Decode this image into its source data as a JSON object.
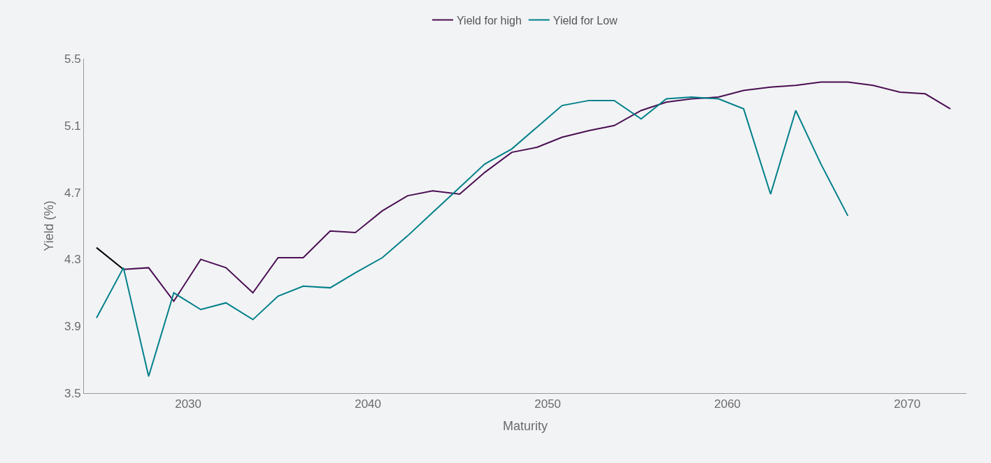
{
  "chart_data": {
    "type": "line",
    "xlabel": "Maturity",
    "ylabel": "Yield (%)",
    "xlim": [
      2024.2,
      2073.3
    ],
    "xticks": [
      2030,
      2040,
      2050,
      2060,
      2070
    ],
    "ylim": [
      3.5,
      5.5
    ],
    "yticks": [
      3.5,
      3.9,
      4.3,
      4.7,
      5.1,
      5.5
    ],
    "grid": false,
    "legend": "top",
    "marker": "none",
    "line_style": "solid",
    "series": [
      {
        "color": "#000000",
        "x": [
          2024.9,
          2026.4
        ],
        "values": [
          4.37,
          4.24
        ]
      },
      {
        "name": "Yield for high",
        "color": "#4a0f52",
        "x": [
          2026.4,
          2027.8,
          2029.2,
          2030.7,
          2032.1,
          2033.6,
          2035.0,
          2036.4,
          2037.9,
          2039.3,
          2040.8,
          2042.2,
          2043.6,
          2045.1,
          2046.5,
          2048.0,
          2049.4,
          2050.8,
          2052.3,
          2053.7,
          2055.2,
          2056.6,
          2058.0,
          2059.5,
          2060.9,
          2062.4,
          2063.8,
          2065.2,
          2066.7,
          2068.1,
          2069.6,
          2071.0,
          2072.4
        ],
        "values": [
          4.24,
          4.25,
          4.05,
          4.3,
          4.25,
          4.1,
          4.31,
          4.31,
          4.47,
          4.46,
          4.59,
          4.68,
          4.71,
          4.69,
          4.82,
          4.94,
          4.97,
          5.03,
          5.07,
          5.1,
          5.19,
          5.24,
          5.26,
          5.27,
          5.31,
          5.33,
          5.34,
          5.36,
          5.36,
          5.34,
          5.3,
          5.29,
          5.2
        ]
      },
      {
        "name": "Yield for Low",
        "color": "#00808a",
        "x": [
          2024.9,
          2026.4,
          2027.8,
          2029.2,
          2030.7,
          2032.1,
          2033.6,
          2035.0,
          2036.4,
          2037.9,
          2039.3,
          2040.8,
          2042.2,
          2043.6,
          2045.1,
          2046.5,
          2048.0,
          2049.4,
          2050.8,
          2052.3,
          2053.7,
          2055.2,
          2056.6,
          2058.0,
          2059.5,
          2060.9,
          2062.4,
          2063.8,
          2065.2,
          2066.7
        ],
        "values": [
          3.95,
          4.25,
          3.6,
          4.1,
          4.0,
          4.04,
          3.94,
          4.08,
          4.14,
          4.13,
          4.22,
          4.31,
          4.44,
          4.58,
          4.73,
          4.87,
          4.96,
          5.09,
          5.22,
          5.25,
          5.25,
          5.14,
          5.26,
          5.27,
          5.26,
          5.2,
          4.69,
          5.19,
          4.87,
          4.56
        ]
      }
    ]
  }
}
